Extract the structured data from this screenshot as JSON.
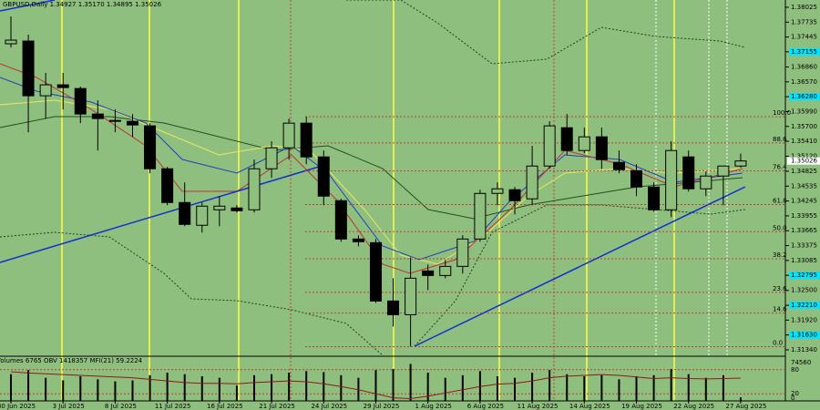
{
  "header": "GBPUSD,Daily  1.34927 1.35170 1.34895 1.35026",
  "price_axis": {
    "ylim": [
      1.31233,
      1.38167
    ],
    "ticks": [
      1.38025,
      1.37735,
      1.37445,
      1.37155,
      {
        "value": 1.3686,
        "label": "1.36860"
      },
      {
        "value": 1.3657,
        "label": "1.36570"
      },
      {
        "value": 1.3628,
        "label": "1.36280"
      },
      {
        "value": 1.3599,
        "label": "1.35990"
      },
      {
        "value": 1.357,
        "label": "1.35700"
      },
      {
        "value": 1.3541,
        "label": "1.35410"
      },
      {
        "value": 1.3512,
        "label": "1.35120"
      },
      1.34825,
      1.34535,
      1.34245,
      1.33955,
      1.33665,
      1.33375,
      1.33085,
      1.32795,
      {
        "value": 1.325,
        "label": "1.32500"
      },
      {
        "value": 1.3221,
        "label": "1.32210"
      },
      {
        "value": 1.3192,
        "label": "1.31920"
      },
      {
        "value": 1.3163,
        "label": "1.31630"
      },
      {
        "value": 1.3134,
        "label": "1.31340"
      }
    ],
    "highlighted_ticks": [
      3,
      6,
      18,
      20,
      22
    ],
    "current_price": 1.35026
  },
  "fibonacci": {
    "high": 1.35889,
    "low": 1.31403,
    "levels": [
      {
        "value": 100,
        "label": "100.0"
      },
      {
        "value": 88.6,
        "label": "88.6"
      },
      {
        "value": 76.4,
        "label": "76.4"
      },
      {
        "value": 61.8,
        "label": "61.8"
      },
      {
        "value": 50,
        "label": "50.0"
      },
      {
        "value": 38.2,
        "label": "38.2"
      },
      {
        "value": 23.6,
        "label": "23.6"
      },
      {
        "value": 14.6,
        "label": "14.6"
      },
      {
        "value": 0,
        "label": "0.0"
      }
    ]
  },
  "categories": [
    "30 Jun 2025",
    null,
    null,
    "3 Jul 2025",
    null,
    null,
    "8 Jul 2025",
    null,
    null,
    "11 Jul 2025",
    null,
    null,
    "16 Jul 2025",
    null,
    null,
    "21 Jul 2025",
    null,
    null,
    "24 Jul 2025",
    null,
    null,
    "29 Jul 2025",
    null,
    null,
    "1 Aug 2025",
    null,
    null,
    "6 Aug 2025",
    null,
    null,
    "11 Aug 2025",
    null,
    null,
    "14 Aug 2025",
    null,
    null,
    "19 Aug 2025",
    null,
    null,
    "22 Aug 2025",
    null,
    null,
    "27 Aug 2025"
  ],
  "candles": [
    {
      "o": 1.37313,
      "h": 1.37847,
      "l": 1.37241,
      "c": 1.37384
    },
    {
      "o": 1.37366,
      "h": 1.37491,
      "l": 1.35586,
      "c": 1.36298
    },
    {
      "o": 1.36298,
      "h": 1.36743,
      "l": 1.35853,
      "c": 1.36512
    },
    {
      "o": 1.36512,
      "h": 1.36743,
      "l": 1.36031,
      "c": 1.36458
    },
    {
      "o": 1.3644,
      "h": 1.36476,
      "l": 1.35764,
      "c": 1.35942
    },
    {
      "o": 1.35942,
      "h": 1.36209,
      "l": 1.3523,
      "c": 1.35853
    },
    {
      "o": 1.35817,
      "h": 1.36031,
      "l": 1.35586,
      "c": 1.358
    },
    {
      "o": 1.358,
      "h": 1.35942,
      "l": 1.35497,
      "c": 1.35728
    },
    {
      "o": 1.35711,
      "h": 1.35764,
      "l": 1.34785,
      "c": 1.34874
    },
    {
      "o": 1.34874,
      "h": 1.3491,
      "l": 1.34162,
      "c": 1.34215
    },
    {
      "o": 1.34215,
      "h": 1.34607,
      "l": 1.33753,
      "c": 1.33788
    },
    {
      "o": 1.33771,
      "h": 1.34215,
      "l": 1.33628,
      "c": 1.34144
    },
    {
      "o": 1.34073,
      "h": 1.3434,
      "l": 1.33753,
      "c": 1.34144
    },
    {
      "o": 1.34109,
      "h": 1.34162,
      "l": 1.3402,
      "c": 1.34055
    },
    {
      "o": 1.34073,
      "h": 1.35052,
      "l": 1.3402,
      "c": 1.34874
    },
    {
      "o": 1.34874,
      "h": 1.35408,
      "l": 1.34696,
      "c": 1.35283
    },
    {
      "o": 1.35283,
      "h": 1.35853,
      "l": 1.35052,
      "c": 1.35764
    },
    {
      "o": 1.35764,
      "h": 1.35889,
      "l": 1.34963,
      "c": 1.35105
    },
    {
      "o": 1.35105,
      "h": 1.3523,
      "l": 1.34162,
      "c": 1.3434
    },
    {
      "o": 1.34251,
      "h": 1.34287,
      "l": 1.3345,
      "c": 1.33503
    },
    {
      "o": 1.33503,
      "h": 1.33575,
      "l": 1.33361,
      "c": 1.3345
    },
    {
      "o": 1.33432,
      "h": 1.33503,
      "l": 1.32257,
      "c": 1.32293
    },
    {
      "o": 1.32293,
      "h": 1.32738,
      "l": 1.31795,
      "c": 1.32026
    },
    {
      "o": 1.32026,
      "h": 1.33147,
      "l": 1.31403,
      "c": 1.32738
    },
    {
      "o": 1.3288,
      "h": 1.33005,
      "l": 1.32507,
      "c": 1.32791
    },
    {
      "o": 1.32791,
      "h": 1.33094,
      "l": 1.32738,
      "c": 1.32969
    },
    {
      "o": 1.32969,
      "h": 1.33575,
      "l": 1.32827,
      "c": 1.33503
    },
    {
      "o": 1.33503,
      "h": 1.34465,
      "l": 1.3345,
      "c": 1.34393
    },
    {
      "o": 1.34393,
      "h": 1.34607,
      "l": 1.34162,
      "c": 1.34483
    },
    {
      "o": 1.34465,
      "h": 1.34518,
      "l": 1.33984,
      "c": 1.34251
    },
    {
      "o": 1.34287,
      "h": 1.35319,
      "l": 1.34162,
      "c": 1.34927
    },
    {
      "o": 1.34927,
      "h": 1.358,
      "l": 1.34874,
      "c": 1.35711
    },
    {
      "o": 1.35675,
      "h": 1.35942,
      "l": 1.35141,
      "c": 1.3523
    },
    {
      "o": 1.3523,
      "h": 1.35675,
      "l": 1.35177,
      "c": 1.35497
    },
    {
      "o": 1.35497,
      "h": 1.35675,
      "l": 1.34874,
      "c": 1.35052
    },
    {
      "o": 1.34999,
      "h": 1.3523,
      "l": 1.34785,
      "c": 1.34856
    },
    {
      "o": 1.34838,
      "h": 1.34963,
      "l": 1.3434,
      "c": 1.34518
    },
    {
      "o": 1.34518,
      "h": 1.34607,
      "l": 1.34037,
      "c": 1.34073
    },
    {
      "o": 1.34073,
      "h": 1.35408,
      "l": 1.33931,
      "c": 1.3523
    },
    {
      "o": 1.35105,
      "h": 1.3523,
      "l": 1.34429,
      "c": 1.34483
    },
    {
      "o": 1.34483,
      "h": 1.34821,
      "l": 1.3434,
      "c": 1.34732
    },
    {
      "o": 1.34732,
      "h": 1.34927,
      "l": 1.34162,
      "c": 1.34927
    },
    {
      "o": 1.34927,
      "h": 1.3517,
      "l": 1.34895,
      "c": 1.35026
    }
  ],
  "indicator": {
    "header": "Volumes 6765  OBV 1418357  MFI(21) 59.2224",
    "volume_lim": [
      0,
      74560
    ],
    "volume_ticks": [
      74560
    ],
    "mfi_lim": [
      0,
      100
    ],
    "mfi_ticks": [
      80,
      20,
      0
    ],
    "volumes": [
      52000,
      60000,
      45000,
      40000,
      48000,
      42000,
      38000,
      40000,
      50000,
      55000,
      52000,
      48000,
      45000,
      30000,
      50000,
      52000,
      55000,
      58000,
      56000,
      50000,
      45000,
      60000,
      62000,
      72000,
      55000,
      45000,
      50000,
      58000,
      48000,
      45000,
      55000,
      60000,
      52000,
      48000,
      50000,
      42000,
      48000,
      50000,
      62000,
      52000,
      45000,
      50000,
      6765
    ],
    "mfi": [
      75,
      72,
      70,
      68,
      66,
      64,
      62,
      60,
      56,
      52,
      48,
      46,
      46,
      45,
      48,
      50,
      52,
      50,
      45,
      38,
      30,
      20,
      10,
      8,
      14,
      22,
      30,
      38,
      44,
      46,
      52,
      60,
      64,
      66,
      68,
      66,
      62,
      58,
      60,
      58,
      57,
      58,
      59.2224
    ]
  }
}
